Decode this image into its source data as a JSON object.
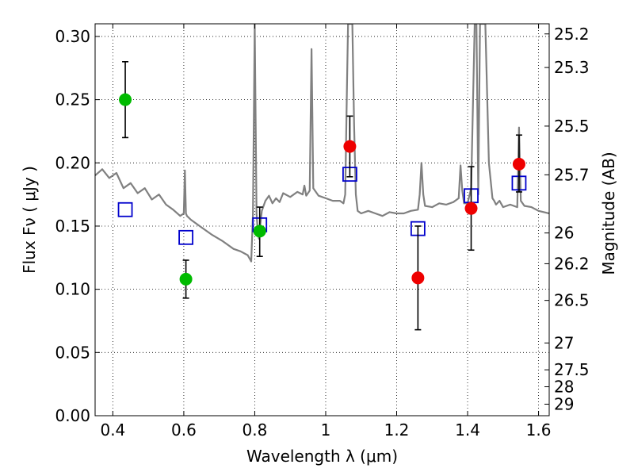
{
  "chart_data": {
    "type": "scatter",
    "xlabel": "Wavelength  λ (μm)",
    "ylabel": "Flux  Fν  ( μJy )",
    "y2label": "Magnitude (AB)",
    "xlim": [
      0.35,
      1.63
    ],
    "ylim": [
      0.0,
      0.31
    ],
    "grid": true,
    "x_ticks": [
      0.4,
      0.6,
      0.8,
      1.0,
      1.2,
      1.4,
      1.6
    ],
    "x_tick_labels": [
      "0.4",
      "0.6",
      "0.8",
      "1",
      "1.2",
      "1.4",
      "1.6"
    ],
    "y_ticks": [
      0.0,
      0.05,
      0.1,
      0.15,
      0.2,
      0.25,
      0.3
    ],
    "y_tick_labels": [
      "0.00",
      "0.05",
      "0.10",
      "0.15",
      "0.20",
      "0.25",
      "0.30"
    ],
    "y2_tick_labels": [
      "25.2",
      "25.3",
      "25.5",
      "25.7",
      "26",
      "26.2",
      "26.5",
      "27",
      "27.5",
      "28",
      "29"
    ],
    "colors": {
      "green": "#00bb00",
      "red": "#ee0000",
      "model_box": "#0000cc",
      "spectrum": "#808080"
    },
    "series": [
      {
        "marker": "circle",
        "color": "green",
        "points": [
          {
            "x": 0.435,
            "y": 0.25,
            "yerr_low": 0.22,
            "yerr_high": 0.28
          },
          {
            "x": 0.606,
            "y": 0.108,
            "yerr_low": 0.093,
            "yerr_high": 0.123
          },
          {
            "x": 0.814,
            "y": 0.146,
            "yerr_low": 0.126,
            "yerr_high": 0.165
          }
        ]
      },
      {
        "marker": "circle",
        "color": "red",
        "points": [
          {
            "x": 1.068,
            "y": 0.213,
            "yerr_low": 0.189,
            "yerr_high": 0.237
          },
          {
            "x": 1.26,
            "y": 0.109,
            "yerr_low": 0.068,
            "yerr_high": 0.15
          },
          {
            "x": 1.41,
            "y": 0.164,
            "yerr_low": 0.131,
            "yerr_high": 0.197
          },
          {
            "x": 1.545,
            "y": 0.199,
            "yerr_low": 0.177,
            "yerr_high": 0.222
          }
        ]
      },
      {
        "marker": "open-square",
        "color": "model_box",
        "points": [
          {
            "x": 0.435,
            "y": 0.163
          },
          {
            "x": 0.606,
            "y": 0.141
          },
          {
            "x": 0.814,
            "y": 0.151
          },
          {
            "x": 1.068,
            "y": 0.191
          },
          {
            "x": 1.26,
            "y": 0.148
          },
          {
            "x": 1.41,
            "y": 0.174
          },
          {
            "x": 1.545,
            "y": 0.184
          }
        ]
      }
    ],
    "spectrum": {
      "color": "spectrum",
      "x": [
        0.35,
        0.37,
        0.39,
        0.41,
        0.43,
        0.45,
        0.47,
        0.49,
        0.51,
        0.53,
        0.55,
        0.57,
        0.59,
        0.6,
        0.603,
        0.606,
        0.609,
        0.62,
        0.65,
        0.68,
        0.71,
        0.74,
        0.76,
        0.78,
        0.79,
        0.795,
        0.8,
        0.805,
        0.808,
        0.81,
        0.812,
        0.815,
        0.82,
        0.83,
        0.84,
        0.85,
        0.86,
        0.87,
        0.88,
        0.9,
        0.92,
        0.935,
        0.94,
        0.945,
        0.955,
        0.96,
        0.965,
        0.98,
        1.0,
        1.02,
        1.04,
        1.05,
        1.055,
        1.06,
        1.063,
        1.066,
        1.075,
        1.08,
        1.085,
        1.09,
        1.1,
        1.12,
        1.14,
        1.16,
        1.18,
        1.2,
        1.22,
        1.24,
        1.26,
        1.265,
        1.27,
        1.275,
        1.28,
        1.3,
        1.32,
        1.34,
        1.36,
        1.375,
        1.38,
        1.385,
        1.39,
        1.4,
        1.41,
        1.42,
        1.425,
        1.43,
        1.435,
        1.45,
        1.46,
        1.47,
        1.475,
        1.48,
        1.49,
        1.5,
        1.52,
        1.54,
        1.545,
        1.55,
        1.56,
        1.58,
        1.6,
        1.63
      ],
      "y": [
        0.19,
        0.195,
        0.188,
        0.192,
        0.18,
        0.184,
        0.176,
        0.18,
        0.171,
        0.175,
        0.167,
        0.163,
        0.158,
        0.16,
        0.194,
        0.16,
        0.158,
        0.155,
        0.149,
        0.143,
        0.138,
        0.132,
        0.13,
        0.127,
        0.122,
        0.16,
        0.31,
        0.16,
        0.148,
        0.142,
        0.14,
        0.15,
        0.162,
        0.17,
        0.174,
        0.168,
        0.172,
        0.169,
        0.176,
        0.173,
        0.177,
        0.175,
        0.182,
        0.174,
        0.178,
        0.29,
        0.18,
        0.174,
        0.172,
        0.17,
        0.17,
        0.168,
        0.175,
        0.26,
        0.31,
        0.31,
        0.31,
        0.23,
        0.175,
        0.162,
        0.16,
        0.162,
        0.16,
        0.158,
        0.161,
        0.16,
        0.16,
        0.162,
        0.163,
        0.175,
        0.2,
        0.175,
        0.166,
        0.165,
        0.168,
        0.167,
        0.169,
        0.172,
        0.198,
        0.178,
        0.168,
        0.168,
        0.18,
        0.31,
        0.31,
        0.175,
        0.31,
        0.31,
        0.2,
        0.172,
        0.17,
        0.167,
        0.17,
        0.165,
        0.167,
        0.165,
        0.228,
        0.17,
        0.166,
        0.165,
        0.162,
        0.16
      ]
    }
  }
}
